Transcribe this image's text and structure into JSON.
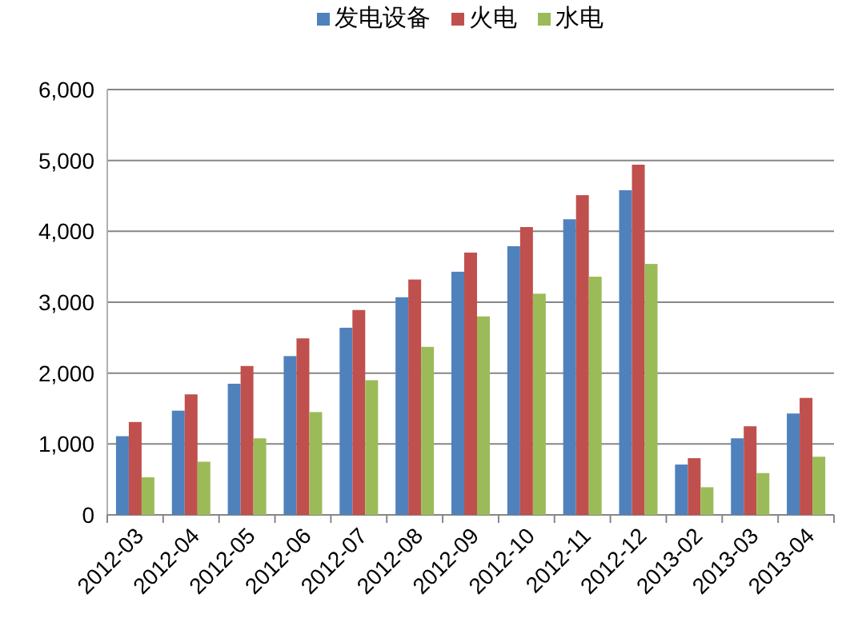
{
  "chart_data": {
    "type": "bar",
    "categories": [
      "2012-03",
      "2012-04",
      "2012-05",
      "2012-06",
      "2012-07",
      "2012-08",
      "2012-09",
      "2012-10",
      "2012-11",
      "2012-12",
      "2013-02",
      "2013-03",
      "2013-04"
    ],
    "series": [
      {
        "name": "发电设备",
        "color": "#4f81bd",
        "values": [
          1110,
          1470,
          1850,
          2240,
          2640,
          3070,
          3430,
          3790,
          4170,
          4580,
          710,
          1080,
          1430
        ]
      },
      {
        "name": "火电",
        "color": "#c0504d",
        "values": [
          1310,
          1700,
          2100,
          2490,
          2890,
          3320,
          3700,
          4060,
          4510,
          4940,
          800,
          1250,
          1650
        ]
      },
      {
        "name": "水电",
        "color": "#9bbb59",
        "values": [
          530,
          750,
          1080,
          1450,
          1900,
          2370,
          2800,
          3120,
          3360,
          3540,
          390,
          590,
          820
        ]
      }
    ],
    "ylim": [
      0,
      6000
    ],
    "yticks": [
      {
        "value": 0,
        "label": "0"
      },
      {
        "value": 1000,
        "label": "1,000"
      },
      {
        "value": 2000,
        "label": "2,000"
      },
      {
        "value": 3000,
        "label": "3,000"
      },
      {
        "value": 4000,
        "label": "4,000"
      },
      {
        "value": 5000,
        "label": "5,000"
      },
      {
        "value": 6000,
        "label": "6,000"
      }
    ],
    "grid": "y",
    "legend": "top"
  }
}
